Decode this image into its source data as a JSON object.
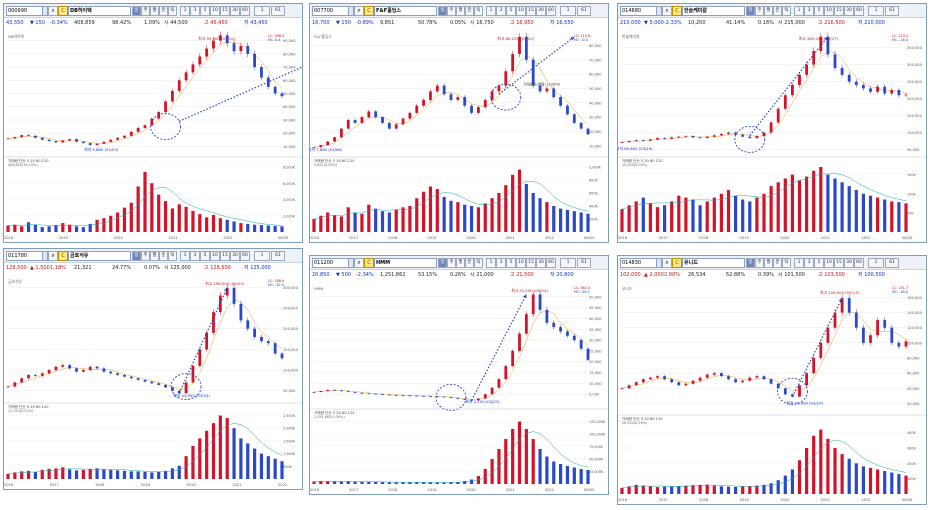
{
  "chart_data": [
    {
      "type": "candlestick",
      "panel": "p1",
      "code": "000990",
      "name": "DB하이텍",
      "price": "43,550",
      "change": "150",
      "change_pct": "-0.34%",
      "volume": "408,859",
      "vol_ratio": "98.42%",
      "ratio2": "1.09%",
      "open": "44,500",
      "high": "45,450",
      "low": "43,450",
      "legend_main": "DB하이텍",
      "legend_vol": "408,859(16.15%)",
      "lc": "LC: 388.3",
      "hc": "HC: 0.4",
      "x_labels": [
        "2018",
        "2019",
        "2020",
        "2021",
        "2022",
        "06/05"
      ],
      "y_labels": [
        "90,000",
        "80,000",
        "70,000",
        "60,000",
        "50,000",
        "40,000",
        "30,000",
        "20,000",
        "10,000"
      ],
      "ylim": [
        5000,
        95000
      ],
      "vol_labels": [
        "8,000K",
        "6,000K",
        "4,000K",
        "2,000K"
      ],
      "vol_max": 8000,
      "callout_high": "최고 95,900 (01/10)",
      "callout_low": "최저 9,880 (01/03)",
      "series": [
        16000,
        17000,
        18500,
        18000,
        16500,
        15000,
        14000,
        13000,
        14500,
        15500,
        13500,
        12500,
        11000,
        12000,
        13500,
        15000,
        16500,
        18000,
        21000,
        24000,
        26000,
        31000,
        36000,
        44000,
        52000,
        60000,
        66000,
        72000,
        78000,
        84000,
        90000,
        94000,
        88000,
        82000,
        86000,
        80000,
        70000,
        62000,
        55000,
        50000,
        48000
      ],
      "volumes": [
        800,
        900,
        700,
        1200,
        900,
        600,
        700,
        800,
        1100,
        900,
        700,
        600,
        1000,
        1500,
        1700,
        2000,
        2400,
        3000,
        3600,
        5600,
        7400,
        6000,
        4600,
        3800,
        2900,
        3400,
        3100,
        2600,
        2200,
        1800,
        2100,
        1700,
        1500,
        1300,
        1100,
        1000,
        900,
        850,
        800,
        750,
        700
      ],
      "dashed_start": [
        25,
        29000
      ],
      "dashed_end": [
        53,
        93000
      ],
      "ellipse_center": [
        23,
        25000
      ]
    },
    {
      "type": "candlestick",
      "panel": "p2",
      "code": "007700",
      "name": "F&F홀딩스",
      "price": "16,700",
      "change": "150",
      "change_pct": "-0.89%",
      "volume": "9,851",
      "vol_ratio": "50.78%",
      "ratio2": "0.05%",
      "open": "16,750",
      "high": "16,950",
      "low": "16,550",
      "legend_main": "F&F홀딩스",
      "legend_vol": "9,851(0.03%)",
      "lc": "LC: 115.8",
      "hc": "HC: -0.3",
      "x_labels": [
        "2016",
        "2017",
        "2018",
        "2019",
        "2020",
        "2021",
        "2022",
        "06/05"
      ],
      "y_labels": [
        "80,000",
        "70,000",
        "60,000",
        "50,000",
        "40,000",
        "30,000",
        "20,000",
        "10,000"
      ],
      "ylim": [
        5000,
        88000
      ],
      "vol_labels": [
        "1,000K",
        "800K",
        "600K",
        "400K",
        "200K"
      ],
      "vol_max": 1000,
      "callout_high": "최고 86,250 (04/20)",
      "callout_low": "최저 7,860 (01/08)",
      "callout_mid": "거래정지(분할) (10/09)",
      "series": [
        9000,
        10500,
        13000,
        16000,
        22000,
        28000,
        26000,
        30000,
        34000,
        30000,
        26000,
        22000,
        25000,
        29000,
        33000,
        38000,
        42000,
        48000,
        52000,
        46000,
        42000,
        44000,
        38000,
        33000,
        37000,
        42000,
        48000,
        52000,
        62000,
        74000,
        86000,
        70000,
        52000,
        48000,
        50000,
        44000,
        38000,
        32000,
        26000,
        22000,
        18000
      ],
      "volumes": [
        200,
        250,
        300,
        260,
        240,
        380,
        300,
        280,
        420,
        360,
        320,
        300,
        340,
        380,
        400,
        520,
        620,
        700,
        660,
        540,
        480,
        460,
        420,
        400,
        380,
        440,
        520,
        600,
        720,
        880,
        960,
        740,
        600,
        520,
        460,
        400,
        360,
        340,
        320,
        300,
        280
      ],
      "dashed_start": [
        27,
        46000
      ],
      "dashed_end": [
        38,
        86000
      ],
      "ellipse_center": [
        28,
        44000
      ]
    },
    {
      "type": "candlestick",
      "panel": "p3",
      "code": "014680",
      "name": "한솔케미칼",
      "price": "210,000",
      "change": "5,000",
      "change_pct": "-2.33%",
      "volume": "10,200",
      "vol_ratio": "41.14%",
      "ratio2": "0.16%",
      "open": "215,000",
      "high": "216,500",
      "low": "210,000",
      "legend_main": "한솔케미칼",
      "legend_vol": "10,200(0.09%)",
      "lc": "LC: 223.1",
      "hc": "HC: -16.4",
      "x_labels": [
        "2016",
        "2017",
        "2018",
        "2019",
        "2020",
        "2021",
        "2022",
        "06/05"
      ],
      "y_labels": [
        "350,000",
        "300,000",
        "250,000",
        "200,000",
        "150,000",
        "100,000",
        "50,000"
      ],
      "ylim": [
        40000,
        390000
      ],
      "vol_labels": [
        "150K",
        "100K",
        "50K"
      ],
      "vol_max": 170,
      "callout_high": "최고 382,000 (09/27)",
      "callout_low": "최저 65,800 (03/19)",
      "series": [
        72000,
        75000,
        78000,
        76000,
        80000,
        84000,
        82000,
        86000,
        88000,
        90000,
        86000,
        84000,
        88000,
        92000,
        96000,
        100000,
        94000,
        88000,
        84000,
        90000,
        100000,
        130000,
        170000,
        210000,
        240000,
        270000,
        300000,
        340000,
        382000,
        330000,
        290000,
        270000,
        250000,
        240000,
        230000,
        220000,
        235000,
        215000,
        225000,
        210000,
        212000
      ],
      "volumes": [
        60,
        70,
        80,
        90,
        75,
        65,
        70,
        80,
        95,
        90,
        85,
        70,
        80,
        90,
        100,
        110,
        95,
        85,
        80,
        90,
        100,
        120,
        130,
        140,
        150,
        135,
        145,
        160,
        170,
        150,
        140,
        130,
        120,
        110,
        100,
        95,
        90,
        85,
        80,
        78,
        75
      ],
      "dashed_start": [
        18,
        92000
      ],
      "dashed_end": [
        29,
        382000
      ],
      "ellipse_center": [
        18,
        80000
      ]
    },
    {
      "type": "candlestick",
      "panel": "p4",
      "code": "011780",
      "name": "금호석유",
      "price": "128,500",
      "change": "1,500",
      "change_pct": "1.18%",
      "volume": "21,321",
      "vol_ratio": "24.77%",
      "ratio2": "0.07%",
      "open": "125,000",
      "high": "128,500",
      "low": "125,000",
      "legend_main": "금호석유",
      "legend_vol": "21,321(0.07%)",
      "lc": "LC: 188.9",
      "hc": "HC: -32.5",
      "x_labels": [
        "2016",
        "2017",
        "2018",
        "2019",
        "2020",
        "2021",
        "2022"
      ],
      "y_labels": [
        "300,000",
        "250,000",
        "200,000",
        "150,000",
        "100,000",
        "50,000"
      ],
      "ylim": [
        30000,
        320000
      ],
      "vol_labels": [
        "2,500K",
        "2,000K",
        "1,500K",
        "1,000K",
        "500K"
      ],
      "vol_max": 2600,
      "callout_high": "최고 298,500 (05/03)",
      "callout_low": "최저 43,900 (03/19)",
      "series": [
        60000,
        70000,
        80000,
        88000,
        86000,
        92000,
        100000,
        108000,
        112000,
        104000,
        96000,
        100000,
        108000,
        104000,
        96000,
        92000,
        88000,
        84000,
        80000,
        76000,
        72000,
        68000,
        64000,
        58000,
        50000,
        44000,
        70000,
        110000,
        150000,
        190000,
        240000,
        280000,
        298500,
        260000,
        220000,
        200000,
        180000,
        170000,
        165000,
        140000,
        128500
      ],
      "volumes": [
        200,
        260,
        300,
        320,
        280,
        360,
        400,
        420,
        460,
        380,
        340,
        360,
        400,
        420,
        380,
        360,
        340,
        320,
        300,
        300,
        280,
        260,
        280,
        320,
        420,
        520,
        900,
        1300,
        1600,
        1900,
        2200,
        2500,
        2400,
        2000,
        1600,
        1400,
        1200,
        1000,
        900,
        800,
        700
      ],
      "dashed_start": [
        25,
        44000
      ],
      "dashed_end": [
        32,
        298500
      ],
      "ellipse_center": [
        26,
        60000
      ]
    },
    {
      "type": "candlestick",
      "panel": "p5",
      "code": "011200",
      "name": "HMM",
      "price": "20,850",
      "change": "500",
      "change_pct": "-2.34%",
      "volume": "1,251,862",
      "vol_ratio": "53.15%",
      "ratio2": "0.26%",
      "open": "21,000",
      "high": "21,500",
      "low": "20,800",
      "legend_main": "HMM",
      "legend_vol": "1,251,862(0.26%)",
      "lc": "LC: 862.4",
      "hc": "HC: -35.1",
      "x_labels": [
        "2016",
        "2017",
        "2018",
        "2019",
        "2020",
        "2021",
        "2022",
        "06/05"
      ],
      "y_labels": [
        "50,000",
        "45,000",
        "40,000",
        "35,000",
        "30,000",
        "25,000",
        "20,000",
        "15,000",
        "10,000",
        "5,000"
      ],
      "ylim": [
        0,
        55000
      ],
      "vol_labels": [
        "125,000K",
        "100,000K",
        "75,000K",
        "50,000K",
        "25,000K"
      ],
      "vol_max": 130000,
      "callout_high": "최고 51,100 (05/24)",
      "callout_low": "최저 2,150 (03/23)",
      "series": [
        6000,
        6500,
        7000,
        6800,
        6400,
        6000,
        5600,
        5400,
        5200,
        5000,
        4800,
        4600,
        4500,
        4400,
        4300,
        4200,
        4100,
        4000,
        3900,
        3600,
        3200,
        2800,
        2400,
        2150,
        3000,
        5000,
        8000,
        12000,
        18000,
        25000,
        33000,
        42000,
        51100,
        44000,
        38000,
        36000,
        34000,
        32000,
        30000,
        26000,
        20850
      ],
      "volumes": [
        5000,
        6000,
        5500,
        5000,
        4800,
        5200,
        4800,
        4500,
        4200,
        4000,
        3800,
        3600,
        3500,
        3400,
        3300,
        3200,
        3100,
        3000,
        2900,
        3200,
        3600,
        4200,
        6000,
        9000,
        16000,
        30000,
        50000,
        70000,
        90000,
        110000,
        125000,
        110000,
        90000,
        70000,
        55000,
        45000,
        40000,
        36000,
        33000,
        30000,
        28000
      ],
      "dashed_start": [
        23,
        2150
      ],
      "dashed_end": [
        31,
        51100
      ],
      "ellipse_center": [
        20,
        3500
      ]
    },
    {
      "type": "candlestick",
      "panel": "p6",
      "code": "014830",
      "name": "유니드",
      "price": "102,000",
      "change": "2,000",
      "change_pct": "2.00%",
      "volume": "26,534",
      "vol_ratio": "52.88%",
      "ratio2": "0.39%",
      "open": "101,500",
      "high": "103,500",
      "low": "100,500",
      "legend_main": "유니드",
      "legend_vol": "26,534(0.39%)",
      "lc": "LC: 251.7",
      "hc": "HC: -16.0",
      "x_labels": [
        "2016",
        "2017",
        "2018",
        "2019",
        "2020",
        "2021",
        "2022",
        "06/05"
      ],
      "y_labels": [
        "160,000",
        "140,000",
        "120,000",
        "100,000",
        "80,000",
        "60,000",
        "40,000",
        "20,000"
      ],
      "ylim": [
        10000,
        175000
      ],
      "vol_labels": [
        "400K",
        "300K",
        "200K",
        "100K"
      ],
      "vol_max": 450,
      "callout_high": "최고 159,000 (05/13)",
      "callout_low": "최저 29,000 (03/23)",
      "series": [
        40000,
        44000,
        48000,
        52000,
        54000,
        56000,
        52000,
        48000,
        44000,
        46000,
        50000,
        54000,
        58000,
        60000,
        56000,
        52000,
        48000,
        50000,
        54000,
        56000,
        52000,
        46000,
        40000,
        32000,
        29000,
        44000,
        60000,
        80000,
        100000,
        120000,
        140000,
        159000,
        140000,
        120000,
        100000,
        110000,
        130000,
        120000,
        100000,
        95000,
        102000
      ],
      "volumes": [
        40,
        50,
        60,
        55,
        50,
        45,
        48,
        50,
        52,
        55,
        58,
        60,
        62,
        55,
        50,
        48,
        46,
        50,
        52,
        55,
        60,
        70,
        90,
        120,
        160,
        220,
        300,
        380,
        420,
        360,
        300,
        260,
        230,
        200,
        180,
        170,
        160,
        150,
        140,
        130,
        120
      ],
      "dashed_start": [
        24,
        29000
      ],
      "dashed_end": [
        31,
        159000
      ],
      "ellipse_center": [
        24,
        36000
      ]
    }
  ],
  "toolbar": {
    "period_buttons": [
      "일",
      "주",
      "월",
      "분",
      "틱"
    ],
    "unit_buttons": [
      "1",
      "3",
      "5",
      "10",
      "15",
      "30",
      "60"
    ],
    "count_value": "1",
    "count2": "61"
  },
  "quote_labels": {
    "open_prefix": "시",
    "high_prefix": "고",
    "low_prefix": "저"
  },
  "volume_legend": {
    "label": "거래량",
    "ma_label": "단순",
    "ma1": "5",
    "ma2": "20",
    "ma3": "60",
    "ma4": "120"
  }
}
